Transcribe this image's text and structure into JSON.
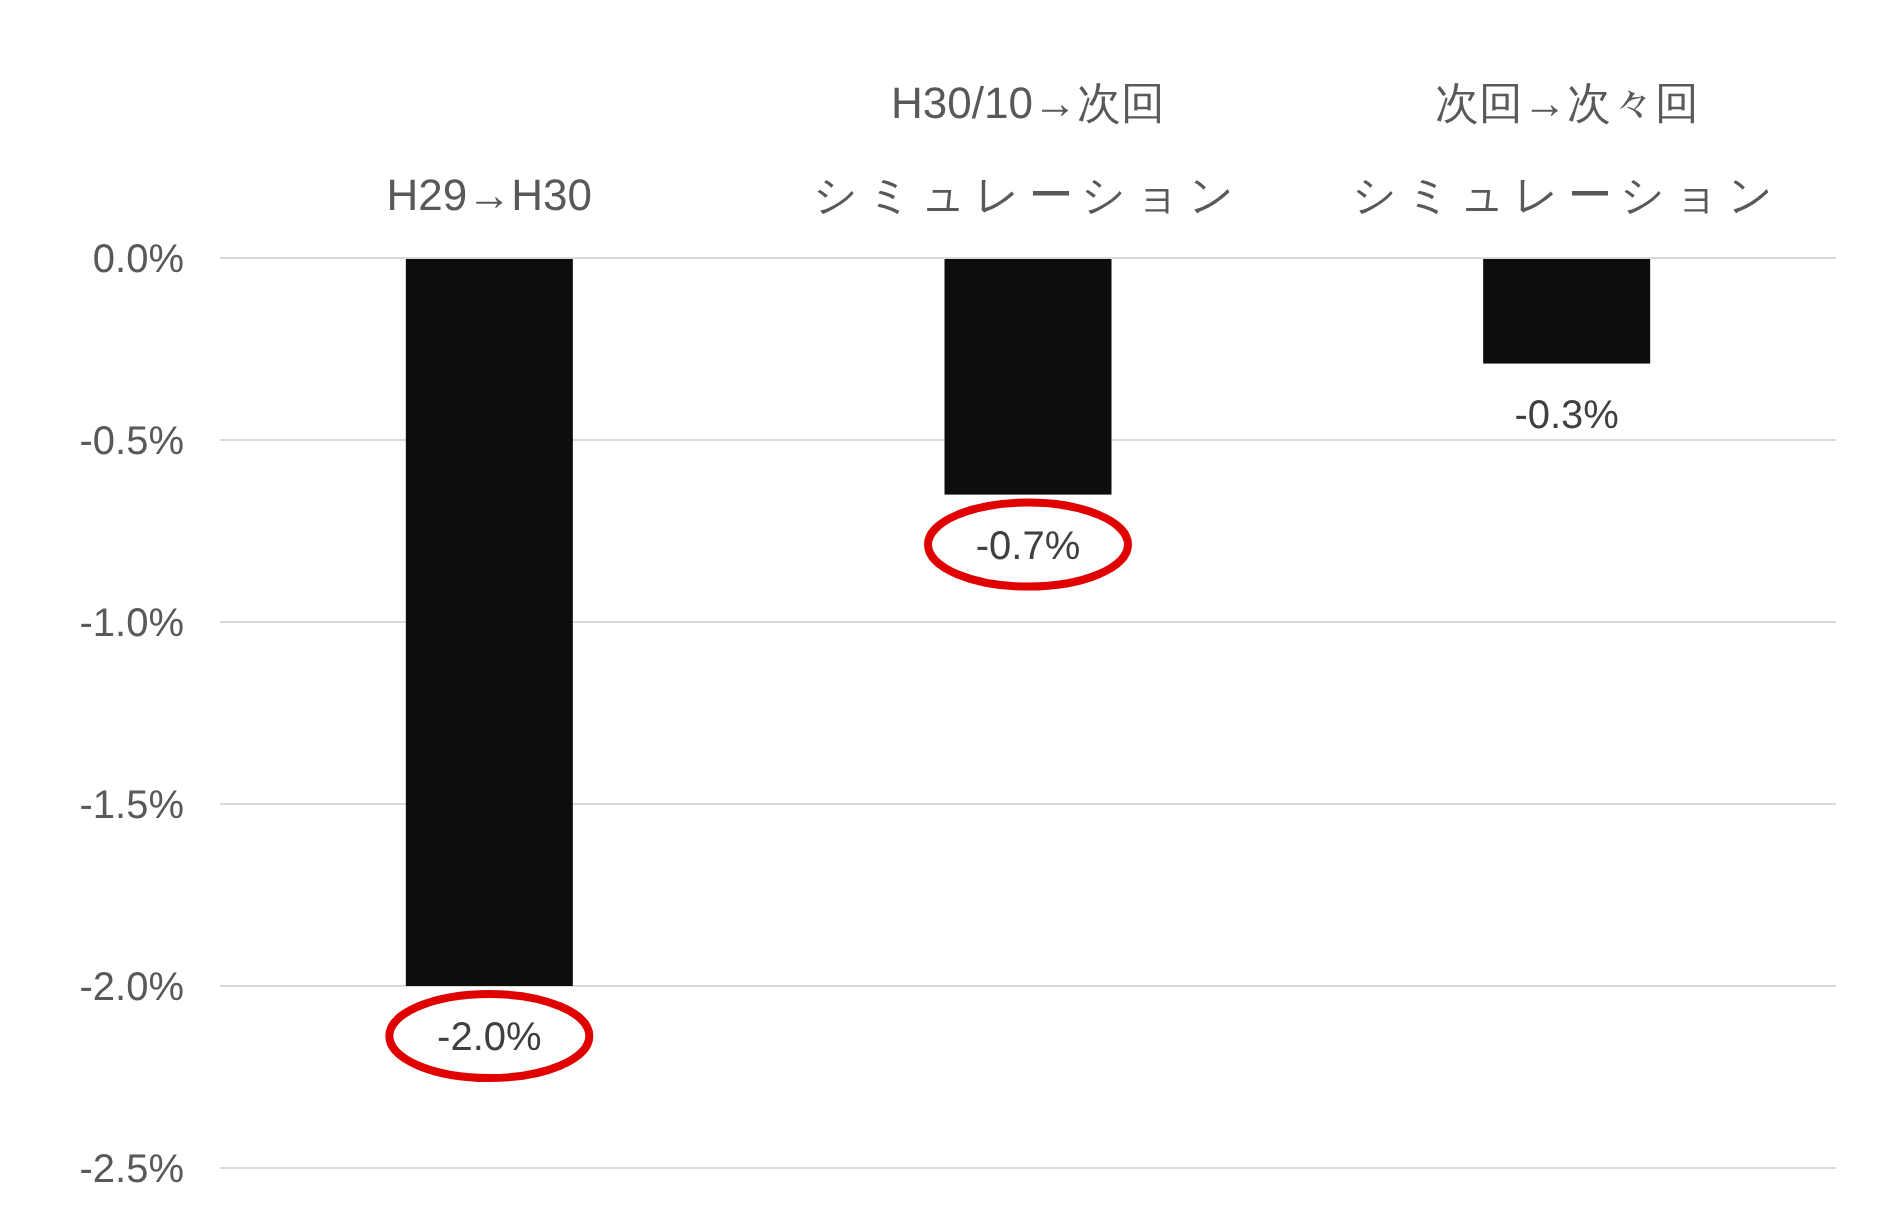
{
  "chart_data": {
    "type": "bar",
    "categories": [
      "H29→H30",
      "H30/10→次回シミュレーション",
      "次回→次々回シミュレーション"
    ],
    "values": [
      -2.0,
      -0.65,
      -0.29
    ],
    "value_labels": [
      "-2.0%",
      "-0.7%",
      "-0.3%"
    ],
    "color": "#0d0d0d",
    "ylim": [
      -2.5,
      0
    ],
    "yticks": [
      {
        "value": 0,
        "label": "0.0%"
      },
      {
        "value": -0.5,
        "label": "-0.5%"
      },
      {
        "value": -1.0,
        "label": "-1.0%"
      },
      {
        "value": -1.5,
        "label": "-1.5%"
      },
      {
        "value": -2.0,
        "label": "-2.0%"
      },
      {
        "value": -2.5,
        "label": "-2.5%"
      }
    ],
    "grid": "y"
  }
}
